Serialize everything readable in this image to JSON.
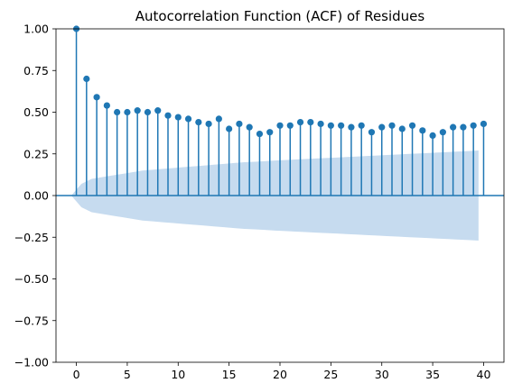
{
  "chart_data": {
    "type": "stem",
    "title": "Autocorrelation Function (ACF) of Residues",
    "xlabel": "",
    "ylabel": "",
    "xlim": [
      -2,
      42
    ],
    "ylim": [
      -1.0,
      1.0
    ],
    "xticks": [
      "0",
      "5",
      "10",
      "15",
      "20",
      "25",
      "30",
      "35",
      "40"
    ],
    "yticks": [
      "1.00",
      "0.75",
      "0.50",
      "0.25",
      "0.00",
      "−0.25",
      "−0.50",
      "−0.75",
      "−1.00"
    ],
    "grid": false,
    "legend": "none",
    "lags": [
      0,
      1,
      2,
      3,
      4,
      5,
      6,
      7,
      8,
      9,
      10,
      11,
      12,
      13,
      14,
      15,
      16,
      17,
      18,
      19,
      20,
      21,
      22,
      23,
      24,
      25,
      26,
      27,
      28,
      29,
      30,
      31,
      32,
      33,
      34,
      35,
      36,
      37,
      38,
      39,
      40
    ],
    "acf": [
      1.0,
      0.7,
      0.59,
      0.54,
      0.5,
      0.5,
      0.51,
      0.5,
      0.51,
      0.48,
      0.47,
      0.46,
      0.44,
      0.43,
      0.46,
      0.4,
      0.43,
      0.41,
      0.37,
      0.38,
      0.42,
      0.42,
      0.44,
      0.44,
      0.43,
      0.42,
      0.42,
      0.41,
      0.42,
      0.38,
      0.41,
      0.42,
      0.4,
      0.42,
      0.39,
      0.36,
      0.38,
      0.41,
      0.41,
      0.42,
      0.43
    ],
    "confidence_band_upper": [
      0.0,
      0.07,
      0.1,
      0.11,
      0.12,
      0.13,
      0.14,
      0.15,
      0.155,
      0.16,
      0.165,
      0.17,
      0.175,
      0.18,
      0.185,
      0.19,
      0.195,
      0.2,
      0.203,
      0.206,
      0.21,
      0.213,
      0.216,
      0.219,
      0.222,
      0.225,
      0.228,
      0.231,
      0.234,
      0.237,
      0.24,
      0.243,
      0.246,
      0.249,
      0.252,
      0.255,
      0.258,
      0.261,
      0.264,
      0.267,
      0.27
    ],
    "colors": {
      "stem": "#1f77b4",
      "marker": "#1f77b4",
      "band": "#c6dbef",
      "zero_line": "#1f77b4"
    }
  }
}
